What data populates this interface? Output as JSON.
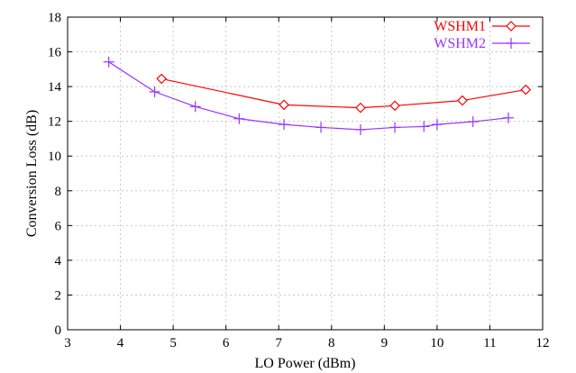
{
  "chart_data": {
    "type": "line",
    "xlabel": "LO Power (dBm)",
    "ylabel": "Conversion Loss (dB)",
    "xlim": [
      3,
      12
    ],
    "ylim": [
      0,
      18
    ],
    "xticks": [
      3,
      4,
      5,
      6,
      7,
      8,
      9,
      10,
      11,
      12
    ],
    "yticks": [
      0,
      2,
      4,
      6,
      8,
      10,
      12,
      14,
      16,
      18
    ],
    "grid": true,
    "legend_position": "top-right",
    "series": [
      {
        "name": "WSHM1",
        "color": "#ff0000",
        "marker": "diamond",
        "x": [
          4.78,
          7.1,
          8.55,
          9.2,
          10.48,
          11.68
        ],
        "y": [
          14.45,
          12.95,
          12.78,
          12.9,
          13.2,
          13.82
        ]
      },
      {
        "name": "WSHM2",
        "color": "#9933ff",
        "marker": "plus",
        "x": [
          3.78,
          4.65,
          5.42,
          6.25,
          7.1,
          7.8,
          8.55,
          9.2,
          9.75,
          10.0,
          10.68,
          11.35
        ],
        "y": [
          15.42,
          13.7,
          12.85,
          12.15,
          11.82,
          11.65,
          11.52,
          11.65,
          11.7,
          11.82,
          11.98,
          12.2
        ]
      }
    ]
  }
}
